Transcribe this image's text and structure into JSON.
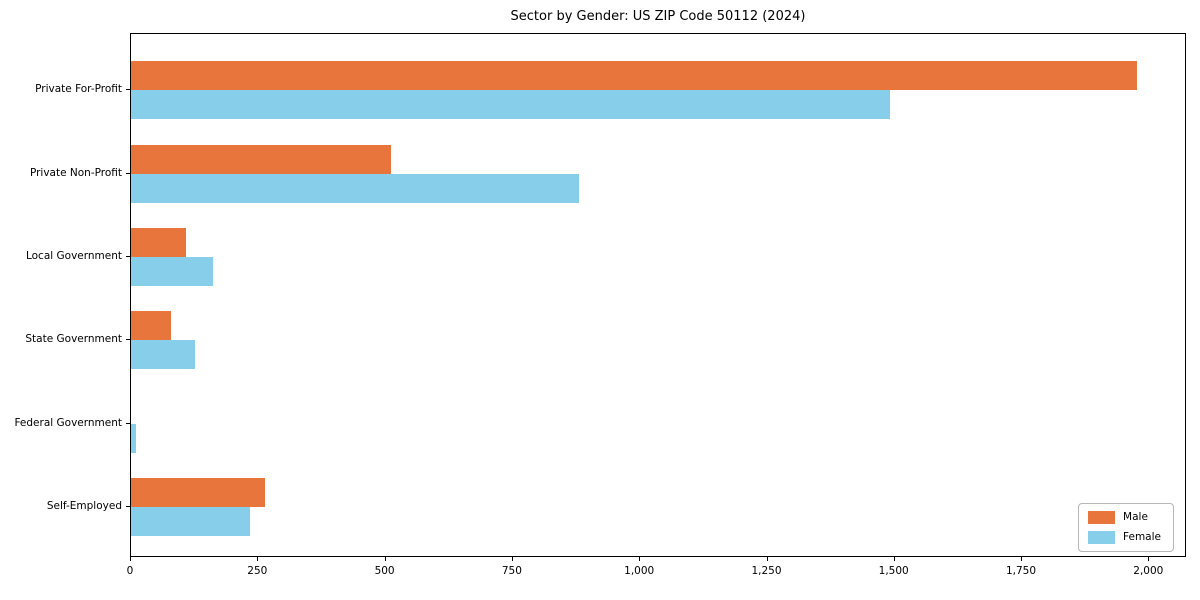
{
  "chart_data": {
    "type": "bar",
    "orientation": "horizontal",
    "title": "Sector by Gender: US ZIP Code 50112 (2024)",
    "categories": [
      "Private For-Profit",
      "Private Non-Profit",
      "Local Government",
      "State Government",
      "Federal Government",
      "Self-Employed"
    ],
    "series": [
      {
        "name": "Male",
        "color": "#E8763C",
        "values": [
          1975,
          510,
          107,
          79,
          0,
          263
        ]
      },
      {
        "name": "Female",
        "color": "#87CEEB",
        "values": [
          1490,
          880,
          160,
          125,
          9,
          233
        ]
      }
    ],
    "xlabel": "",
    "ylabel": "",
    "xlim": [
      0,
      2074
    ],
    "x_ticks": [
      0,
      250,
      500,
      750,
      1000,
      1250,
      1500,
      1750,
      2000
    ],
    "x_tick_labels": [
      "0",
      "250",
      "500",
      "750",
      "1,000",
      "1,250",
      "1,500",
      "1,750",
      "2,000"
    ],
    "grid": false,
    "legend": {
      "position": "lower right",
      "entries": [
        "Male",
        "Female"
      ]
    }
  }
}
